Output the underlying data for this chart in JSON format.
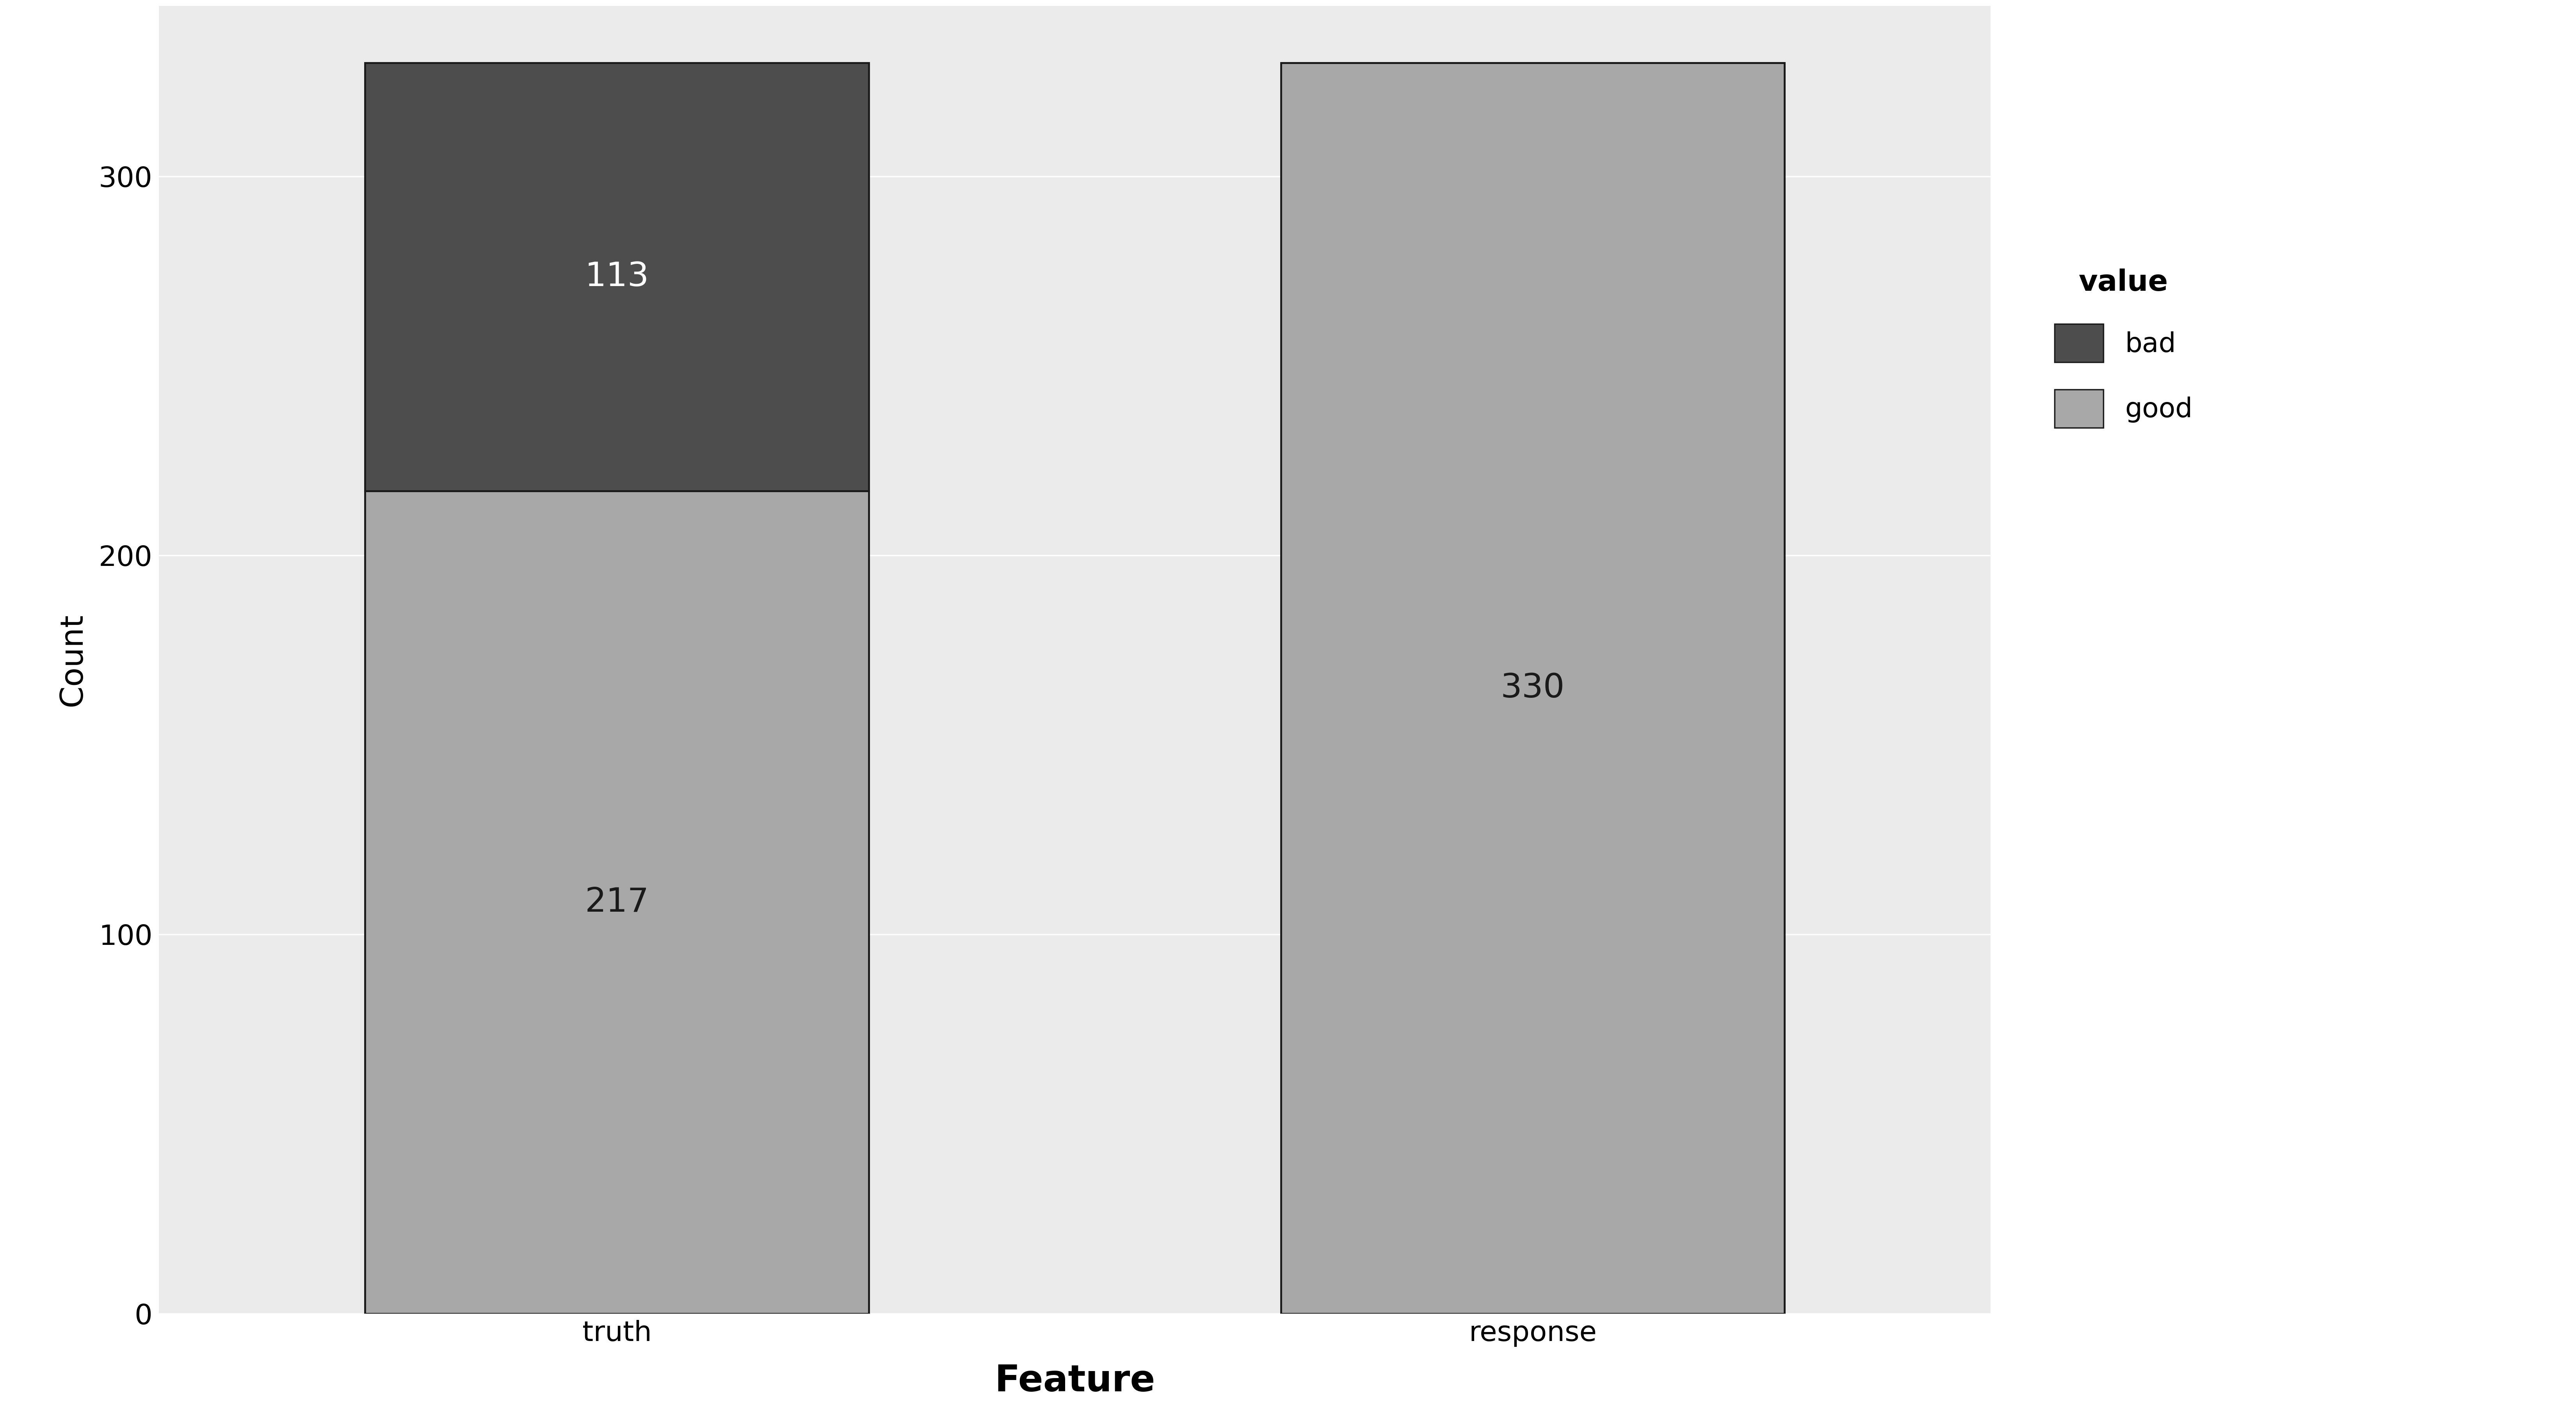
{
  "categories": [
    "truth",
    "response"
  ],
  "good_values": [
    217,
    330
  ],
  "bad_values": [
    113,
    0
  ],
  "good_color": "#a8a8a8",
  "bad_color": "#4d4d4d",
  "bar_edge_color": "#1a1a1a",
  "bar_width": 0.55,
  "xlabel": "Feature",
  "ylabel": "Count",
  "xlabel_fontsize": 68,
  "ylabel_fontsize": 58,
  "tick_fontsize": 52,
  "legend_title": "value",
  "legend_fontsize": 50,
  "legend_title_fontsize": 54,
  "ylim": [
    0,
    345
  ],
  "yticks": [
    0,
    100,
    200,
    300
  ],
  "background_color": "#ffffff",
  "panel_background": "#ebebeb",
  "grid_color": "#ffffff",
  "bar_label_fontsize": 62,
  "bar_label_color_good": "#1a1a1a",
  "bar_label_color_bad": "#ffffff"
}
